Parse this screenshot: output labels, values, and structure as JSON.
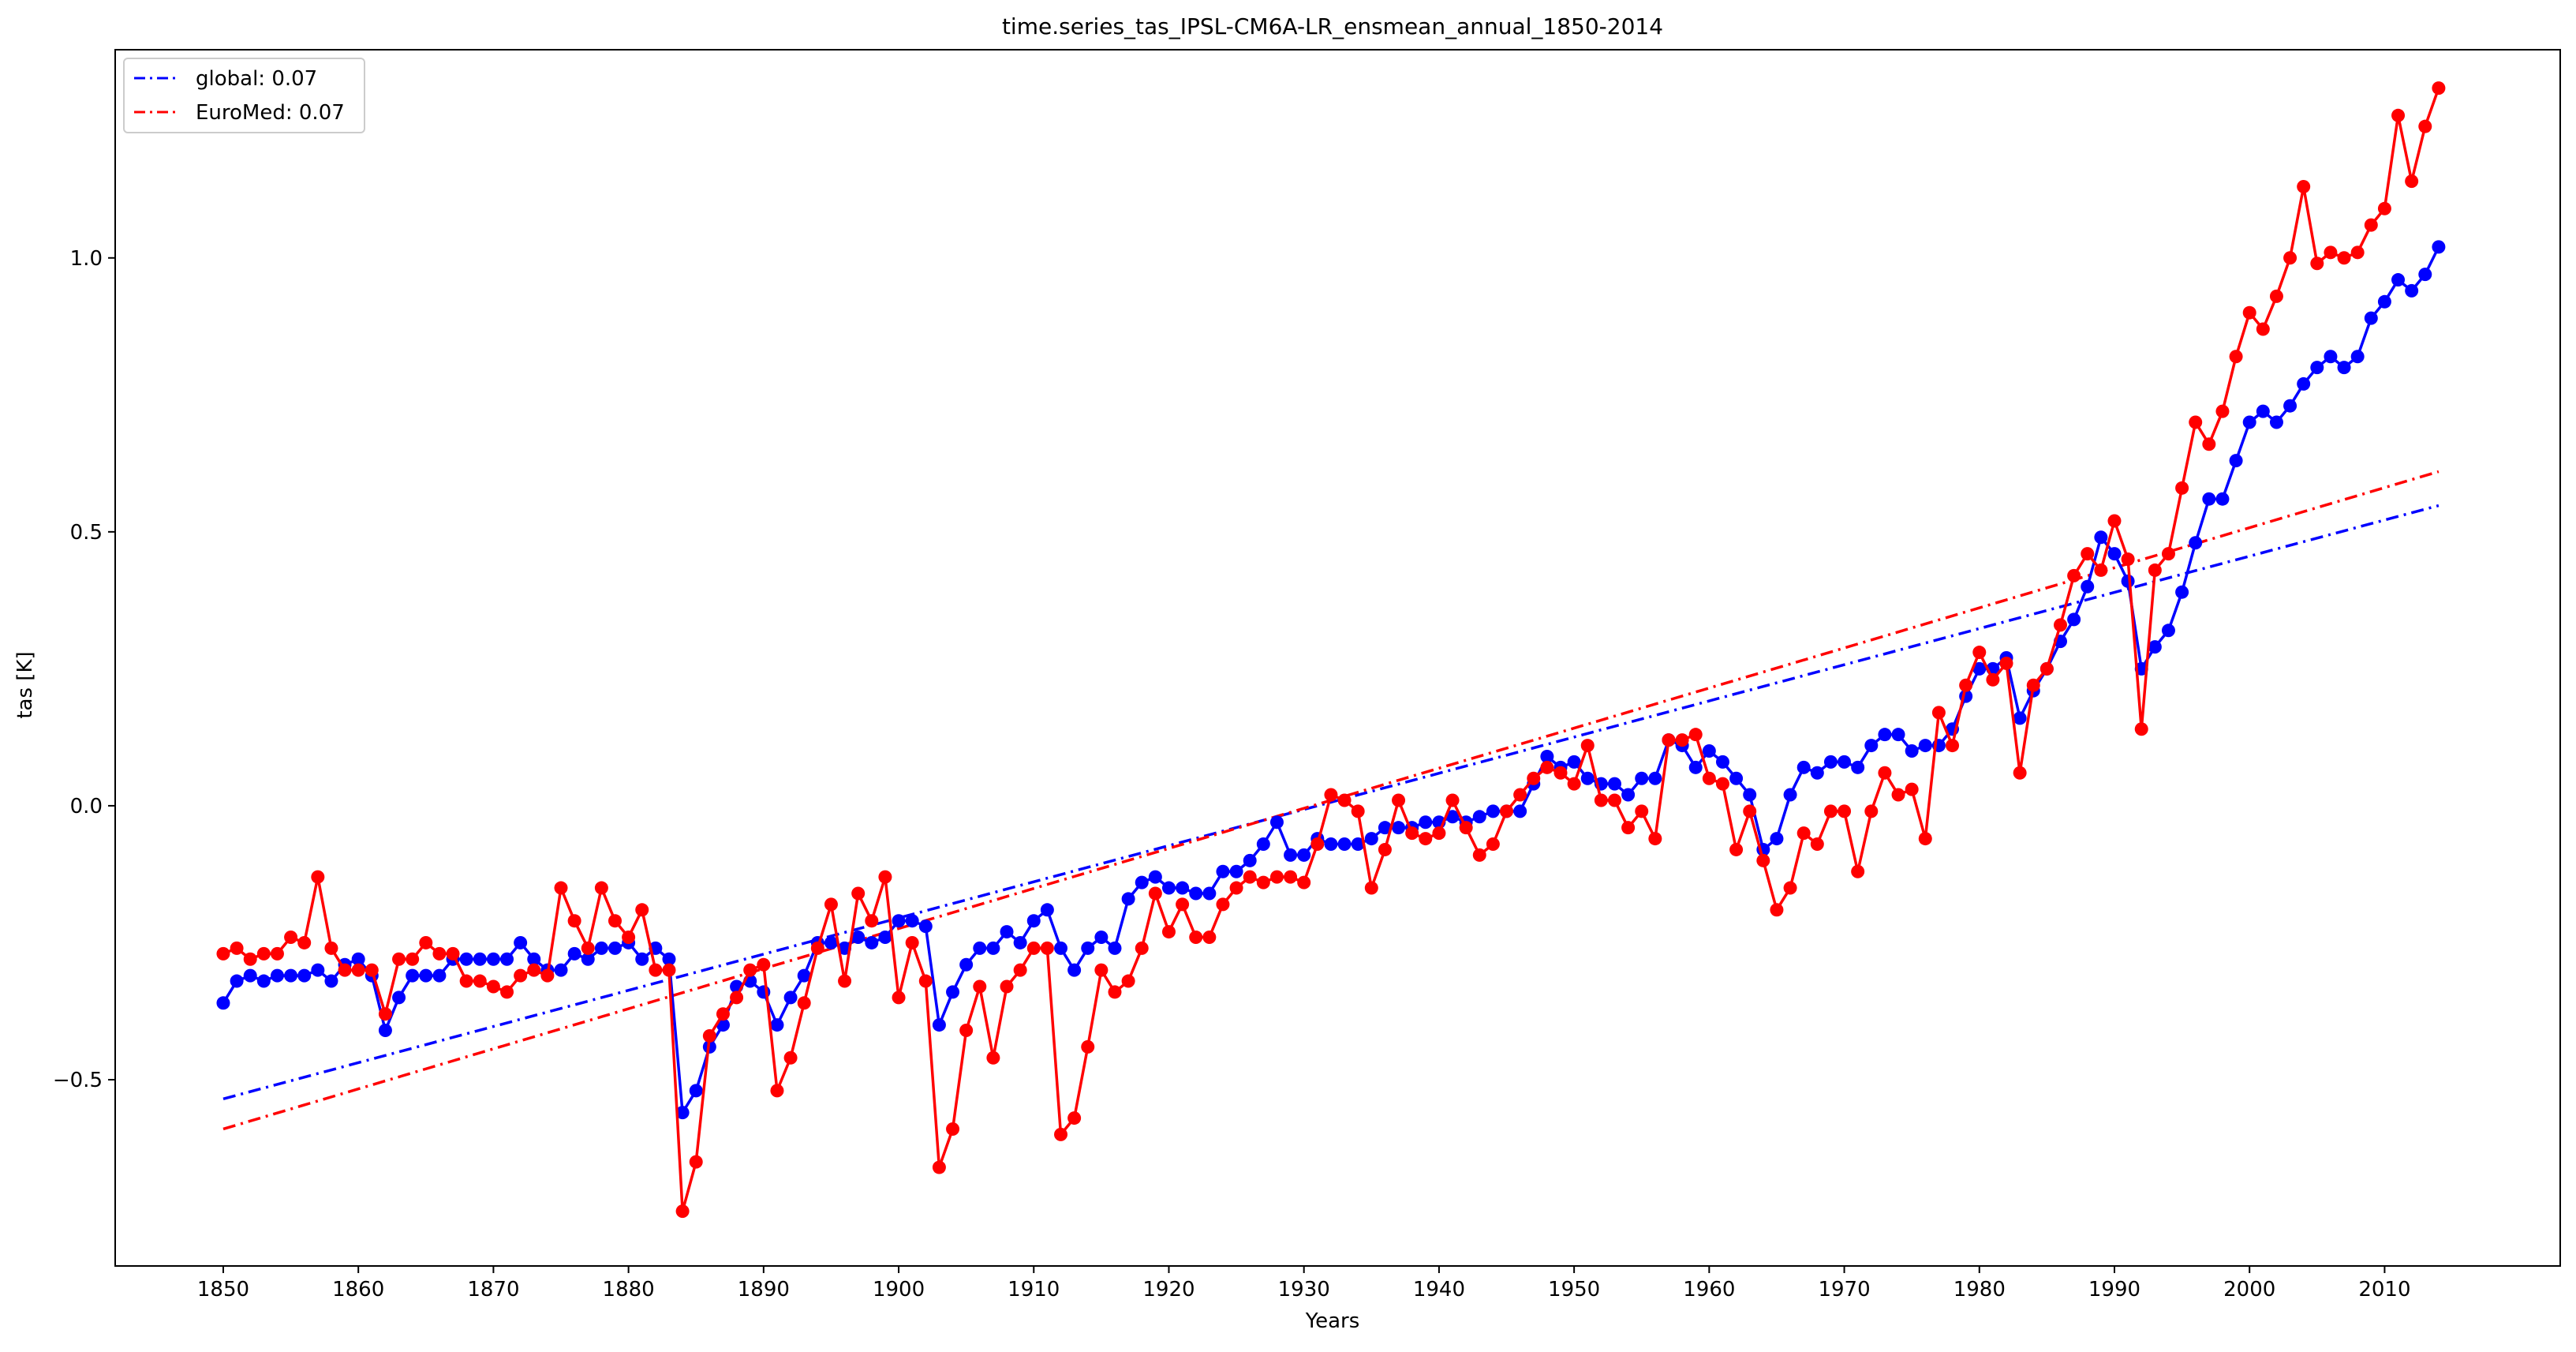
{
  "chart_data": {
    "type": "line",
    "title": "time.series_tas_IPSL-CM6A-LR_ensmean_annual_1850-2014",
    "xlabel": "Years",
    "ylabel": "tas [K]",
    "xlim": [
      1842,
      2023
    ],
    "ylim": [
      -0.84,
      1.38
    ],
    "xticks": [
      1850,
      1860,
      1870,
      1880,
      1890,
      1900,
      1910,
      1920,
      1930,
      1940,
      1950,
      1960,
      1970,
      1980,
      1990,
      2000,
      2010
    ],
    "yticks": [
      -0.5,
      0.0,
      0.5,
      1.0
    ],
    "ytick_labels": [
      "−0.5",
      "0.0",
      "0.5",
      "1.0"
    ],
    "grid": false,
    "legend_position": "top-left",
    "x_start": 1850,
    "series": [
      {
        "name": "global",
        "color": "#0000ff",
        "values": [
          -0.36,
          -0.32,
          -0.31,
          -0.32,
          -0.31,
          -0.31,
          -0.31,
          -0.3,
          -0.32,
          -0.29,
          -0.28,
          -0.31,
          -0.41,
          -0.35,
          -0.31,
          -0.31,
          -0.31,
          -0.28,
          -0.28,
          -0.28,
          -0.28,
          -0.28,
          -0.25,
          -0.28,
          -0.3,
          -0.3,
          -0.27,
          -0.28,
          -0.26,
          -0.26,
          -0.25,
          -0.28,
          -0.26,
          -0.28,
          -0.56,
          -0.52,
          -0.44,
          -0.4,
          -0.33,
          -0.32,
          -0.34,
          -0.4,
          -0.35,
          -0.31,
          -0.25,
          -0.25,
          -0.26,
          -0.24,
          -0.25,
          -0.24,
          -0.21,
          -0.21,
          -0.22,
          -0.4,
          -0.34,
          -0.29,
          -0.26,
          -0.26,
          -0.23,
          -0.25,
          -0.21,
          -0.19,
          -0.26,
          -0.3,
          -0.26,
          -0.24,
          -0.26,
          -0.17,
          -0.14,
          -0.13,
          -0.15,
          -0.15,
          -0.16,
          -0.16,
          -0.12,
          -0.12,
          -0.1,
          -0.07,
          -0.03,
          -0.09,
          -0.09,
          -0.06,
          -0.07,
          -0.07,
          -0.07,
          -0.06,
          -0.04,
          -0.04,
          -0.04,
          -0.03,
          -0.03,
          -0.02,
          -0.03,
          -0.02,
          -0.01,
          -0.01,
          -0.01,
          0.04,
          0.09,
          0.07,
          0.08,
          0.05,
          0.04,
          0.04,
          0.02,
          0.05,
          0.05,
          0.12,
          0.11,
          0.07,
          0.1,
          0.08,
          0.05,
          0.02,
          -0.08,
          -0.06,
          0.02,
          0.07,
          0.06,
          0.08,
          0.08,
          0.07,
          0.11,
          0.13,
          0.13,
          0.1,
          0.11,
          0.11,
          0.14,
          0.2,
          0.25,
          0.25,
          0.27,
          0.16,
          0.21,
          0.25,
          0.3,
          0.34,
          0.4,
          0.49,
          0.46,
          0.41,
          0.25,
          0.29,
          0.32,
          0.39,
          0.48,
          0.56,
          0.56,
          0.63,
          0.7,
          0.72,
          0.7,
          0.73,
          0.77,
          0.8,
          0.82,
          0.8,
          0.82,
          0.89,
          0.92,
          0.96,
          0.94,
          0.97,
          1.02
        ]
      },
      {
        "name": "EuroMed",
        "color": "#ff0000",
        "values": [
          -0.27,
          -0.26,
          -0.28,
          -0.27,
          -0.27,
          -0.24,
          -0.25,
          -0.13,
          -0.26,
          -0.3,
          -0.3,
          -0.3,
          -0.38,
          -0.28,
          -0.28,
          -0.25,
          -0.27,
          -0.27,
          -0.32,
          -0.32,
          -0.33,
          -0.34,
          -0.31,
          -0.3,
          -0.31,
          -0.15,
          -0.21,
          -0.26,
          -0.15,
          -0.21,
          -0.24,
          -0.19,
          -0.3,
          -0.3,
          -0.74,
          -0.65,
          -0.42,
          -0.38,
          -0.35,
          -0.3,
          -0.29,
          -0.52,
          -0.46,
          -0.36,
          -0.26,
          -0.18,
          -0.32,
          -0.16,
          -0.21,
          -0.13,
          -0.35,
          -0.25,
          -0.32,
          -0.66,
          -0.59,
          -0.41,
          -0.33,
          -0.46,
          -0.33,
          -0.3,
          -0.26,
          -0.26,
          -0.6,
          -0.57,
          -0.44,
          -0.3,
          -0.34,
          -0.32,
          -0.26,
          -0.16,
          -0.23,
          -0.18,
          -0.24,
          -0.24,
          -0.18,
          -0.15,
          -0.13,
          -0.14,
          -0.13,
          -0.13,
          -0.14,
          -0.07,
          0.02,
          0.01,
          -0.01,
          -0.15,
          -0.08,
          0.01,
          -0.05,
          -0.06,
          -0.05,
          0.01,
          -0.04,
          -0.09,
          -0.07,
          -0.01,
          0.02,
          0.05,
          0.07,
          0.06,
          0.04,
          0.11,
          0.01,
          0.01,
          -0.04,
          -0.01,
          -0.06,
          0.12,
          0.12,
          0.13,
          0.05,
          0.04,
          -0.08,
          -0.01,
          -0.1,
          -0.19,
          -0.15,
          -0.05,
          -0.07,
          -0.01,
          -0.01,
          -0.12,
          -0.01,
          0.06,
          0.02,
          0.03,
          -0.06,
          0.17,
          0.11,
          0.22,
          0.28,
          0.23,
          0.26,
          0.06,
          0.22,
          0.25,
          0.33,
          0.42,
          0.46,
          0.43,
          0.52,
          0.45,
          0.14,
          0.43,
          0.46,
          0.58,
          0.7,
          0.66,
          0.72,
          0.82,
          0.9,
          0.87,
          0.93,
          1.0,
          1.13,
          0.99,
          1.01,
          1.0,
          1.01,
          1.06,
          1.09,
          1.26,
          1.14,
          1.24,
          1.31
        ]
      }
    ],
    "trend_lines": [
      {
        "name": "global",
        "label": "global: 0.07",
        "color": "#0000ff",
        "x": [
          1850,
          2014
        ],
        "y": [
          -0.535,
          0.548
        ]
      },
      {
        "name": "EuroMed",
        "label": "EuroMed: 0.07",
        "color": "#ff0000",
        "x": [
          1850,
          2014
        ],
        "y": [
          -0.59,
          0.61
        ]
      }
    ]
  }
}
